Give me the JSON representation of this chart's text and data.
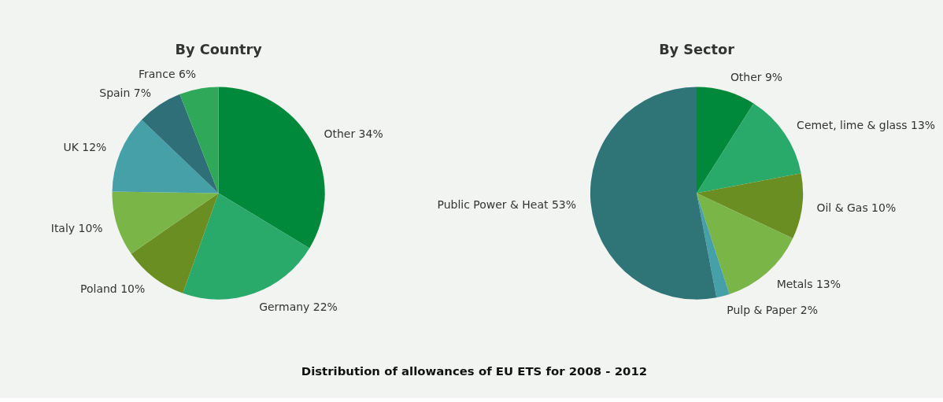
{
  "chart_data": [
    {
      "type": "pie",
      "title": "By Country",
      "categories": [
        "Other",
        "Germany",
        "Poland",
        "Italy",
        "UK",
        "Spain",
        "France"
      ],
      "values": [
        34,
        22,
        10,
        10,
        12,
        7,
        6
      ],
      "value_labels": [
        "34%",
        "22%",
        "10%",
        "10%",
        "12%",
        "7%",
        "6%"
      ],
      "colors": [
        "#00893a",
        "#2aaa6a",
        "#6b8e23",
        "#7ab547",
        "#46a0a8",
        "#2f7078",
        "#30a85a"
      ],
      "legend": false,
      "annotations": [
        "Distribution of allowances of EU ETS for 2008 - 2012"
      ]
    },
    {
      "type": "pie",
      "title": "By Sector",
      "categories": [
        "Other",
        "Cemet, lime & glass",
        "Oil & Gas",
        "Metals",
        "Pulp & Paper",
        "Public Power & Heat"
      ],
      "values": [
        9,
        13,
        10,
        13,
        2,
        53
      ],
      "value_labels": [
        "9%",
        "13%",
        "10%",
        "13%",
        "2%",
        "53%"
      ],
      "colors": [
        "#00893a",
        "#2aaa6a",
        "#6b8e23",
        "#7ab547",
        "#46a0a8",
        "#2f7578"
      ],
      "legend": false
    }
  ]
}
